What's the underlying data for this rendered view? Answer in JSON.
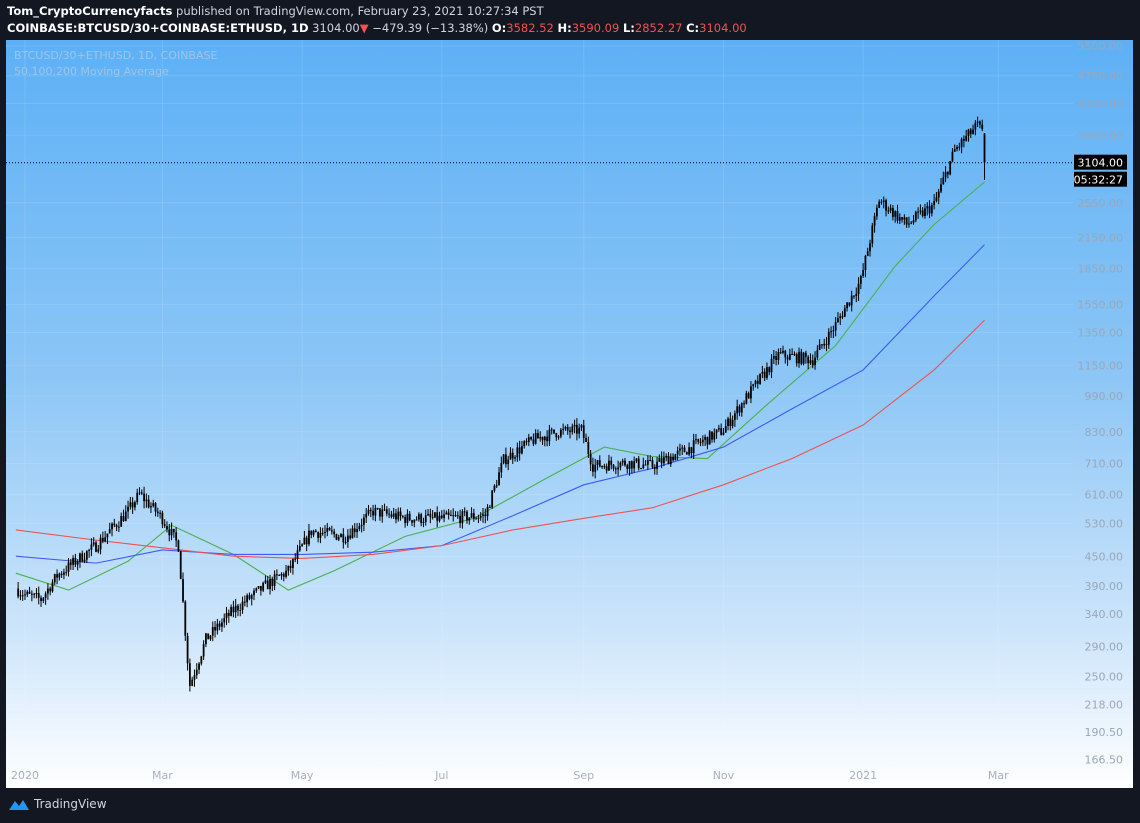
{
  "header": {
    "author": "Tom_CryptoCurrencyfacts",
    "published": "published on TradingView.com, February 23, 2021 10:27:34 PST",
    "symbol": "COINBASE:BTCUSD/30+COINBASE:ETHUSD, 1D",
    "last": "3104.00",
    "change": "−479.39 (−13.38%)",
    "o_label": "O:",
    "o": "3582.52",
    "h_label": "H:",
    "h": "3590.09",
    "l_label": "L:",
    "l": "2852.27",
    "c_label": "C:",
    "c": "3104.00"
  },
  "legend": {
    "series": "BTCUSD/30+ETHUSD, 1D, COINBASE",
    "indicator": "50,100,200 Moving Average"
  },
  "footer": {
    "brand": "TradingView"
  },
  "colors": {
    "ma50": "#4caf50",
    "ma100": "#3d5afe",
    "ma200": "#ef5350",
    "candle": "#000000",
    "down": "#ef5350"
  },
  "chart_data": {
    "type": "candlestick",
    "scale": "log",
    "ylim": [
      166.5,
      5500
    ],
    "xlim": [
      "2020-01-01",
      "2021-03-31"
    ],
    "y_ticks": [
      "5500.00",
      "4750.00",
      "4150.00",
      "3550.00",
      "2550.00",
      "2150.00",
      "1850.00",
      "1550.00",
      "1350.00",
      "1150.00",
      "990.00",
      "830.00",
      "710.00",
      "610.00",
      "530.00",
      "450.00",
      "390.00",
      "340.00",
      "290.00",
      "250.00",
      "218.00",
      "190.50",
      "166.50"
    ],
    "x_ticks": [
      {
        "label": "2020",
        "date": "2020-01-01"
      },
      {
        "label": "Mar",
        "date": "2020-03-01"
      },
      {
        "label": "May",
        "date": "2020-05-01"
      },
      {
        "label": "Jul",
        "date": "2020-07-01"
      },
      {
        "label": "Sep",
        "date": "2020-09-01"
      },
      {
        "label": "Nov",
        "date": "2020-11-01"
      },
      {
        "label": "2021",
        "date": "2021-01-01"
      },
      {
        "label": "Mar",
        "date": "2021-03-01"
      }
    ],
    "last_price_label": "3104.00",
    "countdown_label": "05:32:27",
    "price_path": [
      [
        "2019-12-28",
        385
      ],
      [
        "2020-01-01",
        373
      ],
      [
        "2020-01-08",
        365
      ],
      [
        "2020-01-15",
        410
      ],
      [
        "2020-02-01",
        475
      ],
      [
        "2020-02-15",
        562
      ],
      [
        "2020-02-20",
        612
      ],
      [
        "2020-03-01",
        543
      ],
      [
        "2020-03-08",
        475
      ],
      [
        "2020-03-12",
        271
      ],
      [
        "2020-03-13",
        240
      ],
      [
        "2020-03-20",
        300
      ],
      [
        "2020-04-01",
        346
      ],
      [
        "2020-04-15",
        390
      ],
      [
        "2020-04-25",
        420
      ],
      [
        "2020-05-05",
        510
      ],
      [
        "2020-05-20",
        497
      ],
      [
        "2020-06-01",
        562
      ],
      [
        "2020-06-15",
        543
      ],
      [
        "2020-07-01",
        543
      ],
      [
        "2020-07-20",
        550
      ],
      [
        "2020-07-28",
        723
      ],
      [
        "2020-08-10",
        798
      ],
      [
        "2020-08-20",
        829
      ],
      [
        "2020-08-31",
        837
      ],
      [
        "2020-09-05",
        703
      ],
      [
        "2020-09-20",
        713
      ],
      [
        "2020-10-01",
        703
      ],
      [
        "2020-10-15",
        757
      ],
      [
        "2020-11-01",
        837
      ],
      [
        "2020-11-10",
        968
      ],
      [
        "2020-11-25",
        1210
      ],
      [
        "2020-12-10",
        1183
      ],
      [
        "2020-12-20",
        1403
      ],
      [
        "2020-12-31",
        1744
      ],
      [
        "2021-01-08",
        2588
      ],
      [
        "2021-01-20",
        2293
      ],
      [
        "2021-02-01",
        2526
      ],
      [
        "2021-02-10",
        3301
      ],
      [
        "2021-02-20",
        3733
      ],
      [
        "2021-02-22",
        3582.52
      ]
    ],
    "last_candle": {
      "date": "2021-02-23",
      "open": 3582.52,
      "high": 3590.09,
      "low": 2852.27,
      "close": 3104.0
    },
    "series": [
      {
        "name": "MA50",
        "color": "#4caf50",
        "points": [
          [
            "2019-12-28",
            415
          ],
          [
            "2020-01-20",
            382
          ],
          [
            "2020-02-15",
            440
          ],
          [
            "2020-03-05",
            525
          ],
          [
            "2020-04-01",
            455
          ],
          [
            "2020-04-25",
            382
          ],
          [
            "2020-05-15",
            420
          ],
          [
            "2020-06-15",
            497
          ],
          [
            "2020-07-15",
            543
          ],
          [
            "2020-08-15",
            658
          ],
          [
            "2020-09-10",
            770
          ],
          [
            "2020-10-01",
            735
          ],
          [
            "2020-10-25",
            728
          ],
          [
            "2020-11-20",
            948
          ],
          [
            "2020-12-20",
            1267
          ],
          [
            "2021-01-15",
            1870
          ],
          [
            "2021-02-01",
            2293
          ],
          [
            "2021-02-23",
            2824
          ]
        ]
      },
      {
        "name": "MA100",
        "color": "#3d5afe",
        "points": [
          [
            "2019-12-28",
            451
          ],
          [
            "2020-02-01",
            436
          ],
          [
            "2020-03-01",
            465
          ],
          [
            "2020-04-01",
            455
          ],
          [
            "2020-05-01",
            455
          ],
          [
            "2020-06-01",
            460
          ],
          [
            "2020-07-01",
            475
          ],
          [
            "2020-08-01",
            550
          ],
          [
            "2020-09-01",
            640
          ],
          [
            "2020-10-01",
            694
          ],
          [
            "2020-11-01",
            770
          ],
          [
            "2020-12-01",
            929
          ],
          [
            "2021-01-01",
            1124
          ],
          [
            "2021-02-01",
            1616
          ],
          [
            "2021-02-23",
            2077
          ]
        ]
      },
      {
        "name": "MA200",
        "color": "#ef5350",
        "points": [
          [
            "2019-12-28",
            513
          ],
          [
            "2020-02-01",
            488
          ],
          [
            "2020-03-01",
            470
          ],
          [
            "2020-04-01",
            451
          ],
          [
            "2020-05-01",
            446
          ],
          [
            "2020-06-01",
            455
          ],
          [
            "2020-07-01",
            475
          ],
          [
            "2020-08-01",
            513
          ],
          [
            "2020-09-01",
            543
          ],
          [
            "2020-10-01",
            572
          ],
          [
            "2020-11-01",
            640
          ],
          [
            "2020-12-01",
            728
          ],
          [
            "2021-01-01",
            858
          ],
          [
            "2021-02-01",
            1124
          ],
          [
            "2021-02-23",
            1434
          ]
        ]
      }
    ]
  }
}
